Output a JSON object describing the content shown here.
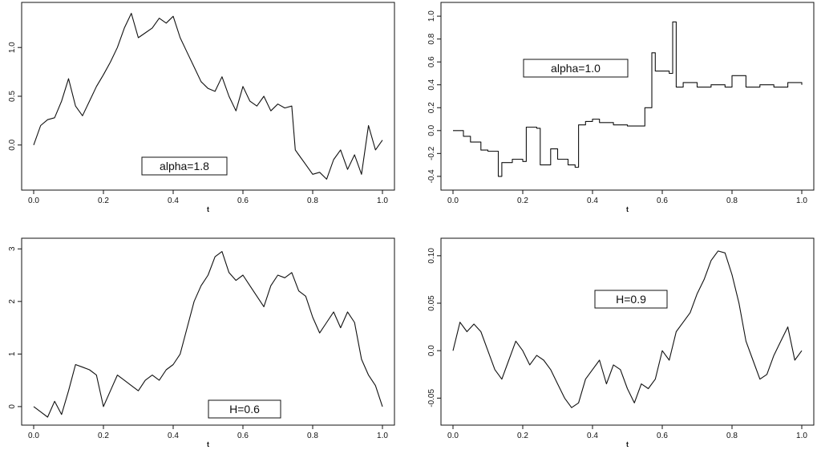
{
  "chart_data": [
    {
      "type": "line",
      "xlabel": "t",
      "annotation": "alpha=1.8",
      "xlim": [
        0.0,
        1.0
      ],
      "ylim": [
        -0.38,
        1.38
      ],
      "xticks": [
        "0.0",
        "0.2",
        "0.4",
        "0.6",
        "0.8",
        "1.0"
      ],
      "yticks": [
        "0.0",
        "0.5",
        "1.0"
      ],
      "series": [
        {
          "x": [
            0.0,
            0.02,
            0.04,
            0.06,
            0.08,
            0.1,
            0.12,
            0.14,
            0.16,
            0.18,
            0.2,
            0.22,
            0.24,
            0.26,
            0.28,
            0.3,
            0.32,
            0.34,
            0.36,
            0.38,
            0.4,
            0.42,
            0.44,
            0.46,
            0.48,
            0.5,
            0.52,
            0.54,
            0.56,
            0.58,
            0.6,
            0.62,
            0.64,
            0.66,
            0.68,
            0.7,
            0.72,
            0.74,
            0.75,
            0.76,
            0.78,
            0.8,
            0.82,
            0.84,
            0.86,
            0.88,
            0.9,
            0.92,
            0.94,
            0.96,
            0.98,
            1.0
          ],
          "values": [
            0.0,
            0.2,
            0.26,
            0.28,
            0.45,
            0.68,
            0.4,
            0.3,
            0.45,
            0.6,
            0.72,
            0.85,
            1.0,
            1.2,
            1.35,
            1.1,
            1.15,
            1.2,
            1.3,
            1.25,
            1.32,
            1.1,
            0.95,
            0.8,
            0.65,
            0.58,
            0.55,
            0.7,
            0.5,
            0.35,
            0.6,
            0.45,
            0.4,
            0.5,
            0.35,
            0.42,
            0.38,
            0.4,
            -0.05,
            -0.1,
            -0.2,
            -0.3,
            -0.28,
            -0.35,
            -0.15,
            -0.05,
            -0.25,
            -0.1,
            -0.3,
            0.2,
            -0.05,
            0.05
          ]
        }
      ]
    },
    {
      "type": "line",
      "xlabel": "t",
      "annotation": "alpha=1.0",
      "xlim": [
        0.0,
        1.0
      ],
      "ylim": [
        -0.45,
        1.05
      ],
      "xticks": [
        "0.0",
        "0.2",
        "0.4",
        "0.6",
        "0.8",
        "1.0"
      ],
      "yticks": [
        "-0.4",
        "-0.2",
        "0.0",
        "0.2",
        "0.4",
        "0.6",
        "0.8",
        "1.0"
      ],
      "series": [
        {
          "x": [
            0.0,
            0.03,
            0.05,
            0.08,
            0.1,
            0.13,
            0.14,
            0.17,
            0.2,
            0.21,
            0.24,
            0.25,
            0.28,
            0.3,
            0.33,
            0.35,
            0.36,
            0.38,
            0.4,
            0.42,
            0.46,
            0.5,
            0.54,
            0.55,
            0.57,
            0.58,
            0.62,
            0.63,
            0.64,
            0.66,
            0.7,
            0.74,
            0.78,
            0.8,
            0.84,
            0.88,
            0.92,
            0.96,
            1.0
          ],
          "values": [
            0.0,
            -0.05,
            -0.1,
            -0.17,
            -0.18,
            -0.4,
            -0.28,
            -0.25,
            -0.27,
            0.03,
            0.02,
            -0.3,
            -0.16,
            -0.25,
            -0.3,
            -0.32,
            0.05,
            0.08,
            0.1,
            0.07,
            0.05,
            0.04,
            0.04,
            0.2,
            0.68,
            0.52,
            0.5,
            0.95,
            0.38,
            0.42,
            0.38,
            0.4,
            0.38,
            0.48,
            0.38,
            0.4,
            0.38,
            0.42,
            0.4
          ]
        }
      ]
    },
    {
      "type": "line",
      "xlabel": "t",
      "annotation": "H=0.6",
      "xlim": [
        0.0,
        1.0
      ],
      "ylim": [
        -0.2,
        3.05
      ],
      "xticks": [
        "0.0",
        "0.2",
        "0.4",
        "0.6",
        "0.8",
        "1.0"
      ],
      "yticks": [
        "0",
        "1",
        "2",
        "3"
      ],
      "series": [
        {
          "x": [
            0.0,
            0.02,
            0.04,
            0.06,
            0.08,
            0.1,
            0.12,
            0.14,
            0.16,
            0.18,
            0.2,
            0.22,
            0.24,
            0.26,
            0.28,
            0.3,
            0.32,
            0.34,
            0.36,
            0.38,
            0.4,
            0.42,
            0.44,
            0.46,
            0.48,
            0.5,
            0.52,
            0.54,
            0.56,
            0.58,
            0.6,
            0.62,
            0.64,
            0.66,
            0.68,
            0.7,
            0.72,
            0.74,
            0.76,
            0.78,
            0.8,
            0.82,
            0.84,
            0.86,
            0.88,
            0.9,
            0.92,
            0.94,
            0.96,
            0.98,
            1.0
          ],
          "values": [
            0.0,
            -0.1,
            -0.2,
            0.1,
            -0.15,
            0.3,
            0.8,
            0.75,
            0.7,
            0.6,
            0.0,
            0.3,
            0.6,
            0.5,
            0.4,
            0.3,
            0.5,
            0.6,
            0.5,
            0.7,
            0.8,
            1.0,
            1.5,
            2.0,
            2.3,
            2.5,
            2.85,
            2.95,
            2.55,
            2.4,
            2.5,
            2.3,
            2.1,
            1.9,
            2.3,
            2.5,
            2.45,
            2.55,
            2.2,
            2.1,
            1.7,
            1.4,
            1.6,
            1.8,
            1.5,
            1.8,
            1.6,
            0.9,
            0.6,
            0.4,
            0.0
          ]
        }
      ]
    },
    {
      "type": "line",
      "xlabel": "t",
      "annotation": "H=0.9",
      "xlim": [
        0.0,
        1.0
      ],
      "ylim": [
        -0.07,
        0.11
      ],
      "xticks": [
        "0.0",
        "0.2",
        "0.4",
        "0.6",
        "0.8",
        "1.0"
      ],
      "yticks": [
        "-0.05",
        "0.0",
        "0.05",
        "0.10"
      ],
      "series": [
        {
          "x": [
            0.0,
            0.02,
            0.04,
            0.06,
            0.08,
            0.1,
            0.12,
            0.14,
            0.16,
            0.18,
            0.2,
            0.22,
            0.24,
            0.26,
            0.28,
            0.3,
            0.32,
            0.34,
            0.36,
            0.38,
            0.4,
            0.42,
            0.44,
            0.46,
            0.48,
            0.5,
            0.52,
            0.54,
            0.56,
            0.58,
            0.6,
            0.62,
            0.64,
            0.66,
            0.68,
            0.7,
            0.72,
            0.74,
            0.76,
            0.78,
            0.8,
            0.82,
            0.84,
            0.86,
            0.88,
            0.9,
            0.92,
            0.94,
            0.96,
            0.98,
            1.0
          ],
          "values": [
            0.0,
            0.03,
            0.02,
            0.028,
            0.02,
            0.0,
            -0.02,
            -0.03,
            -0.01,
            0.01,
            0.0,
            -0.015,
            -0.005,
            -0.01,
            -0.02,
            -0.035,
            -0.05,
            -0.06,
            -0.055,
            -0.03,
            -0.02,
            -0.01,
            -0.035,
            -0.015,
            -0.02,
            -0.04,
            -0.055,
            -0.035,
            -0.04,
            -0.03,
            0.0,
            -0.01,
            0.02,
            0.03,
            0.04,
            0.06,
            0.075,
            0.095,
            0.105,
            0.103,
            0.08,
            0.05,
            0.01,
            -0.01,
            -0.03,
            -0.025,
            -0.005,
            0.01,
            0.025,
            -0.01,
            0.0
          ]
        }
      ]
    }
  ]
}
